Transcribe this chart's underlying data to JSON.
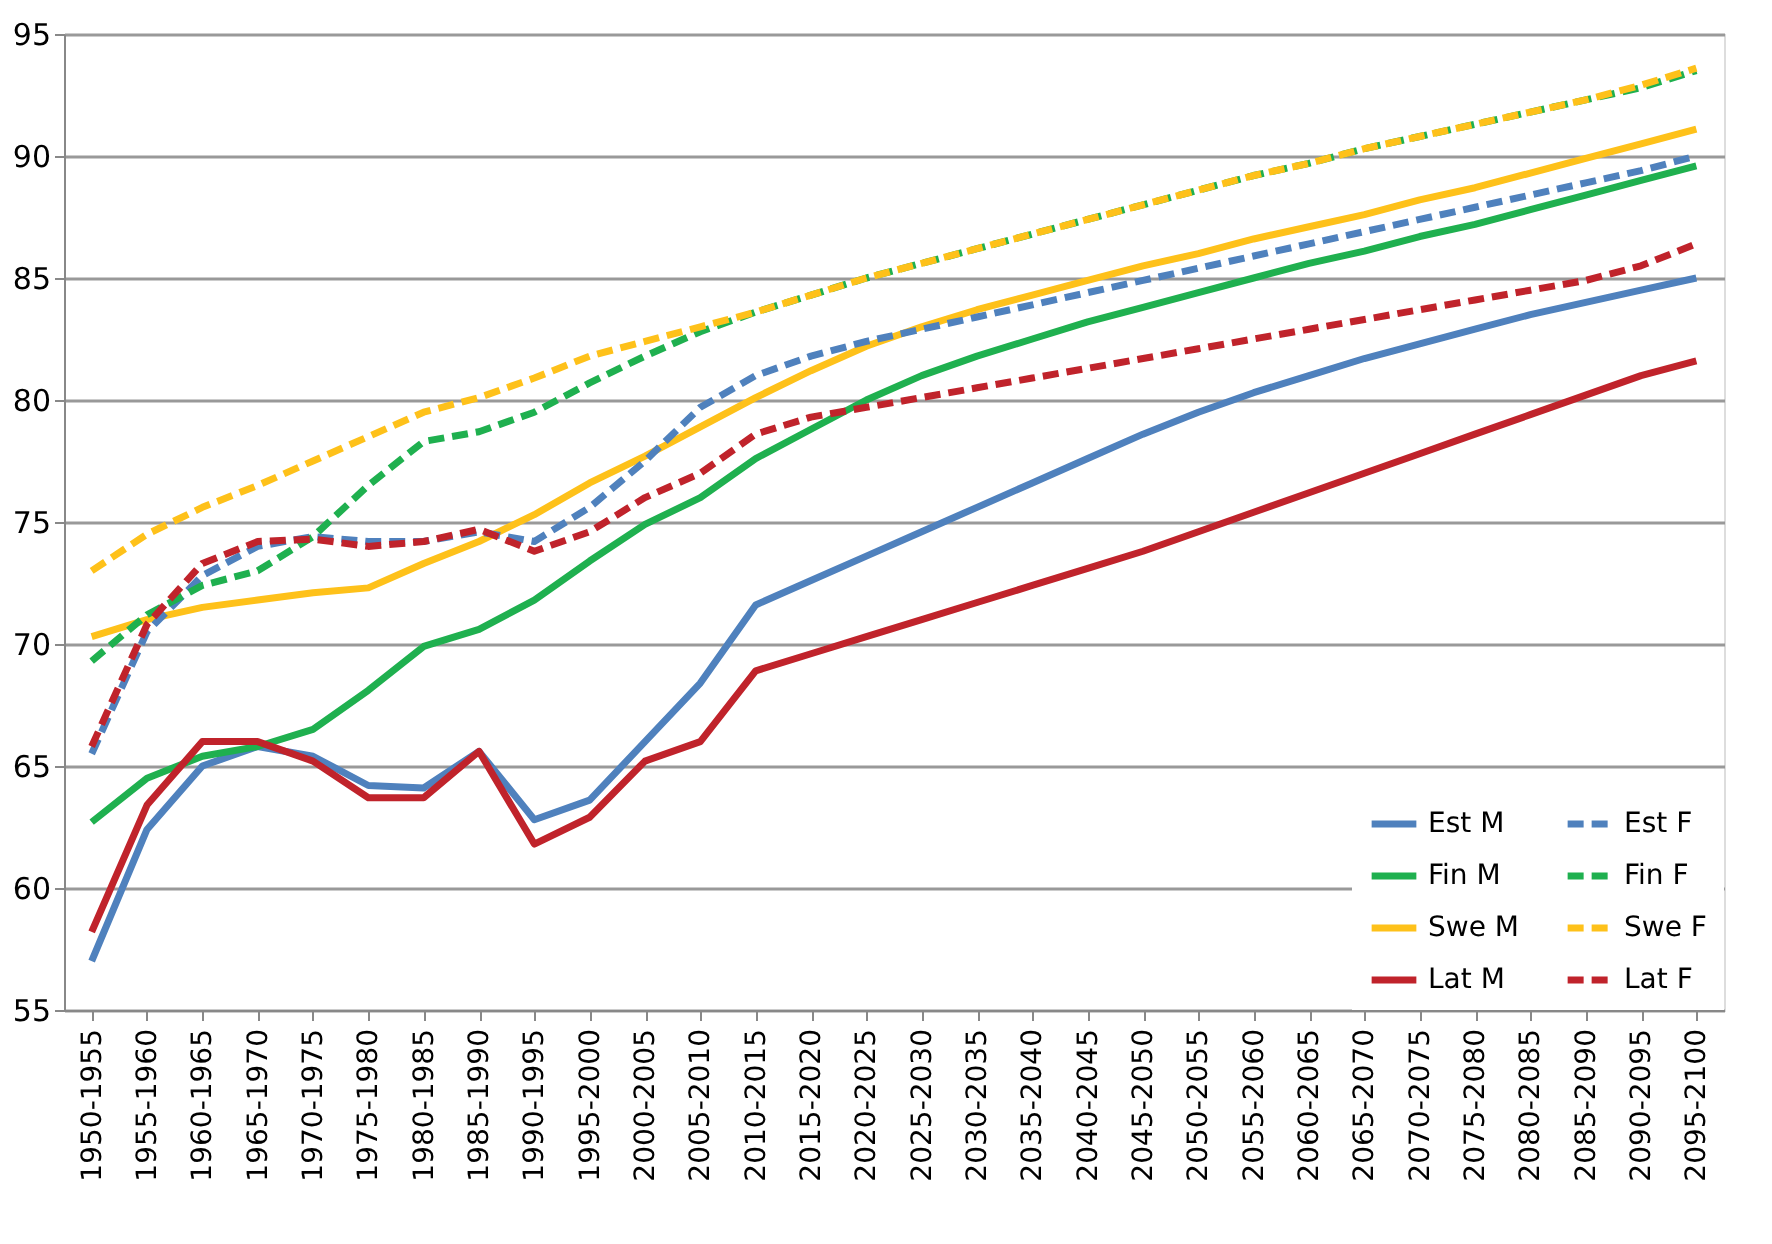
{
  "chart_data": {
    "type": "line",
    "categories": [
      "1950-1955",
      "1955-1960",
      "1960-1965",
      "1965-1970",
      "1970-1975",
      "1975-1980",
      "1980-1985",
      "1985-1990",
      "1990-1995",
      "1995-2000",
      "2000-2005",
      "2005-2010",
      "2010-2015",
      "2015-2020",
      "2020-2025",
      "2025-2030",
      "2030-2035",
      "2035-2040",
      "2040-2045",
      "2045-2050",
      "2050-2055",
      "2055-2060",
      "2060-2065",
      "2065-2070",
      "2070-2075",
      "2075-2080",
      "2080-2085",
      "2085-2090",
      "2090-2095",
      "2095-2100"
    ],
    "series": [
      {
        "name": "Est M",
        "color": "#4f81bd",
        "line_style": "solid",
        "values": [
          57.0,
          62.4,
          65.0,
          65.8,
          65.4,
          64.2,
          64.1,
          65.6,
          62.8,
          63.6,
          66.0,
          68.4,
          71.6,
          72.6,
          73.6,
          74.6,
          75.6,
          76.6,
          77.6,
          78.6,
          79.5,
          80.3,
          81.0,
          81.7,
          82.3,
          82.9,
          83.5,
          84.0,
          84.5,
          85.0
        ]
      },
      {
        "name": "Fin M",
        "color": "#1fb04f",
        "line_style": "solid",
        "values": [
          62.7,
          64.5,
          65.4,
          65.8,
          66.5,
          68.1,
          69.9,
          70.6,
          71.8,
          73.4,
          74.9,
          76.0,
          77.6,
          78.8,
          80.0,
          81.0,
          81.8,
          82.5,
          83.2,
          83.8,
          84.4,
          85.0,
          85.6,
          86.1,
          86.7,
          87.2,
          87.8,
          88.4,
          89.0,
          89.6
        ]
      },
      {
        "name": "Swe M",
        "color": "#fec11a",
        "line_style": "solid",
        "values": [
          70.3,
          71.0,
          71.5,
          71.8,
          72.1,
          72.3,
          73.3,
          74.2,
          75.3,
          76.6,
          77.7,
          78.9,
          80.1,
          81.2,
          82.2,
          83.0,
          83.7,
          84.3,
          84.9,
          85.5,
          86.0,
          86.6,
          87.1,
          87.6,
          88.2,
          88.7,
          89.3,
          89.9,
          90.5,
          91.1
        ]
      },
      {
        "name": "Lat M",
        "color": "#c0232b",
        "line_style": "solid",
        "values": [
          58.2,
          63.4,
          66.0,
          66.0,
          65.2,
          63.7,
          63.7,
          65.6,
          61.8,
          62.9,
          65.2,
          66.0,
          68.9,
          69.6,
          70.3,
          71.0,
          71.7,
          72.4,
          73.1,
          73.8,
          74.6,
          75.4,
          76.2,
          77.0,
          77.8,
          78.6,
          79.4,
          80.2,
          81.0,
          81.6
        ]
      },
      {
        "name": "Est F",
        "color": "#4f81bd",
        "line_style": "dashed",
        "values": [
          65.5,
          70.5,
          72.8,
          74.0,
          74.4,
          74.2,
          74.2,
          74.6,
          74.2,
          75.6,
          77.5,
          79.7,
          81.0,
          81.8,
          82.4,
          82.9,
          83.4,
          83.9,
          84.4,
          84.9,
          85.4,
          85.9,
          86.4,
          86.9,
          87.4,
          87.9,
          88.4,
          88.9,
          89.4,
          90.0
        ]
      },
      {
        "name": "Fin F",
        "color": "#1fb04f",
        "line_style": "dashed",
        "values": [
          69.3,
          71.2,
          72.4,
          73.0,
          74.4,
          76.5,
          78.3,
          78.7,
          79.5,
          80.7,
          81.8,
          82.8,
          83.6,
          84.3,
          85.0,
          85.6,
          86.2,
          86.8,
          87.4,
          88.0,
          88.6,
          89.2,
          89.7,
          90.3,
          90.8,
          91.3,
          91.8,
          92.3,
          92.8,
          93.5
        ]
      },
      {
        "name": "Swe F",
        "color": "#fec11a",
        "line_style": "dashed",
        "values": [
          73.0,
          74.5,
          75.6,
          76.5,
          77.5,
          78.5,
          79.5,
          80.1,
          80.9,
          81.8,
          82.4,
          83.0,
          83.6,
          84.3,
          85.0,
          85.6,
          86.2,
          86.8,
          87.4,
          88.0,
          88.6,
          89.2,
          89.7,
          90.3,
          90.8,
          91.3,
          91.8,
          92.3,
          92.9,
          93.6
        ]
      },
      {
        "name": "Lat F",
        "color": "#c0232b",
        "line_style": "dashed",
        "values": [
          65.8,
          70.8,
          73.3,
          74.2,
          74.3,
          74.0,
          74.2,
          74.7,
          73.8,
          74.6,
          76.0,
          77.0,
          78.6,
          79.3,
          79.7,
          80.1,
          80.5,
          80.9,
          81.3,
          81.7,
          82.1,
          82.5,
          82.9,
          83.3,
          83.7,
          84.1,
          84.5,
          84.9,
          85.5,
          86.4
        ]
      }
    ],
    "ylim": [
      55,
      95
    ],
    "yticks": [
      55,
      60,
      65,
      70,
      75,
      80,
      85,
      90,
      95
    ],
    "grid": "y",
    "legend": "bottom right"
  }
}
